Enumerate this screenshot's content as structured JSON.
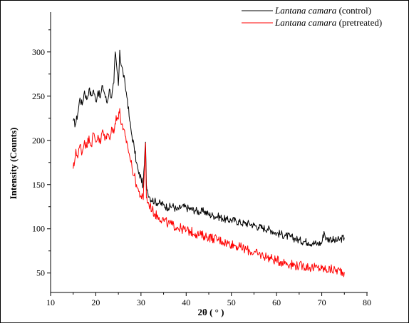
{
  "chart_data": {
    "type": "line",
    "title": "",
    "xlabel": "2θ ( ° )",
    "ylabel": "Intensity (Counts)",
    "xlim": [
      10,
      80
    ],
    "ylim": [
      28,
      345
    ],
    "x_ticks": [
      10,
      20,
      30,
      40,
      50,
      60,
      70,
      80
    ],
    "y_ticks": [
      50,
      100,
      150,
      200,
      250,
      300
    ],
    "grid": false,
    "legend_position": "top-right",
    "series": [
      {
        "name_italic": "Lantana camara",
        "name_suffix": " (control)",
        "color": "#000000",
        "x": [
          15,
          15.5,
          16,
          16.5,
          17,
          17.5,
          18,
          18.5,
          19,
          19.5,
          20,
          20.5,
          21,
          21.5,
          22,
          22.5,
          23,
          23.5,
          24,
          24.3,
          24.6,
          25,
          25.3,
          25.6,
          26,
          26.5,
          27,
          27.5,
          28,
          28.5,
          29,
          29.5,
          30,
          30.5,
          31,
          31.2,
          31.5,
          32,
          33,
          34,
          35,
          36,
          37,
          38,
          39,
          40,
          41,
          42,
          43,
          44,
          45,
          46,
          47,
          48,
          49,
          50,
          51,
          52,
          53,
          54,
          55,
          56,
          57,
          58,
          59,
          60,
          61,
          62,
          63,
          64,
          65,
          66,
          67,
          68,
          69,
          70,
          70.5,
          71,
          72,
          73,
          74,
          75
        ],
        "y": [
          222,
          218,
          230,
          248,
          240,
          256,
          246,
          258,
          250,
          257,
          244,
          256,
          248,
          262,
          252,
          242,
          258,
          248,
          265,
          300,
          285,
          262,
          302,
          285,
          278,
          262,
          246,
          222,
          205,
          192,
          175,
          162,
          158,
          148,
          198,
          150,
          142,
          135,
          131,
          129,
          127,
          124,
          126,
          121,
          125,
          124,
          122,
          121,
          119,
          120,
          116,
          115,
          114,
          112,
          110,
          110,
          109,
          107,
          106,
          106,
          104,
          102,
          101,
          100,
          98,
          95,
          94,
          92,
          91,
          89,
          87,
          86,
          85,
          84,
          83,
          84,
          97,
          88,
          89,
          86,
          88,
          90
        ]
      },
      {
        "name_italic": "Lantana camara",
        "name_suffix": " (pretreated)",
        "color": "#ff0000",
        "x": [
          15,
          15.3,
          15.6,
          16,
          16.5,
          17,
          17.5,
          18,
          18.5,
          19,
          19.5,
          20,
          20.5,
          21,
          21.5,
          22,
          22.5,
          23,
          23.5,
          24,
          24.5,
          25,
          25.3,
          25.6,
          26,
          26.5,
          27,
          27.5,
          28,
          28.5,
          29,
          29.5,
          30,
          30.5,
          31,
          31.2,
          31.5,
          32,
          33,
          34,
          35,
          36,
          37,
          38,
          39,
          40,
          41,
          42,
          43,
          44,
          45,
          46,
          47,
          48,
          49,
          50,
          51,
          52,
          53,
          54,
          55,
          56,
          57,
          58,
          59,
          60,
          61,
          62,
          63,
          64,
          65,
          66,
          67,
          68,
          69,
          70,
          71,
          72,
          73,
          74,
          75
        ],
        "y": [
          168,
          175,
          190,
          180,
          195,
          186,
          200,
          192,
          205,
          194,
          208,
          198,
          206,
          196,
          212,
          200,
          208,
          202,
          215,
          208,
          228,
          224,
          236,
          218,
          212,
          205,
          195,
          182,
          170,
          160,
          150,
          142,
          137,
          133,
          197,
          135,
          130,
          126,
          117,
          113,
          110,
          106,
          104,
          102,
          100,
          98,
          97,
          95,
          93,
          92,
          91,
          89,
          88,
          86,
          84,
          83,
          81,
          79,
          77,
          75,
          73,
          71,
          70,
          68,
          66,
          64,
          63,
          62,
          60,
          59,
          58,
          58,
          57,
          56,
          56,
          55,
          54,
          54,
          53,
          53,
          51
        ]
      }
    ]
  }
}
